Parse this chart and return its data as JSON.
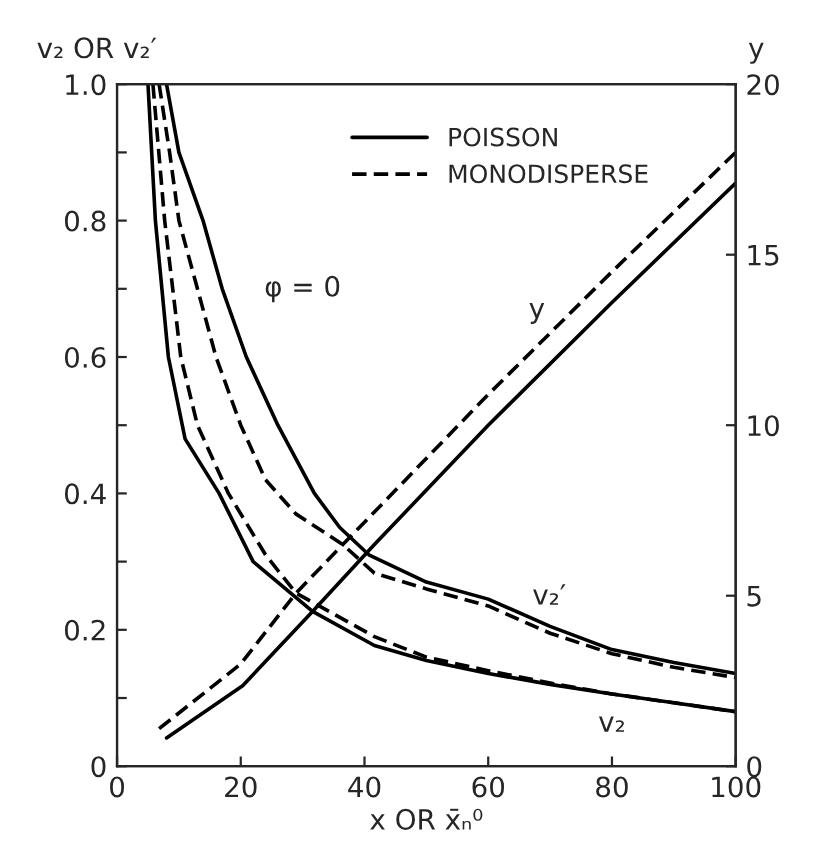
{
  "chart_data": {
    "type": "line",
    "xlabel": "x OR x̄ₙ⁰",
    "ylabel": "v₂ OR v₂′",
    "y2label": "y",
    "xlim": [
      0,
      100
    ],
    "xticks": [
      0,
      20,
      40,
      60,
      80,
      100
    ],
    "ylim": [
      0,
      1.0
    ],
    "yticks": [
      0,
      {
        "value": 0.1,
        "label": null
      },
      0.2,
      {
        "value": 0.3,
        "label": null
      },
      0.4,
      {
        "value": 0.5,
        "label": null
      },
      0.6,
      {
        "value": 0.7,
        "label": null
      },
      0.8,
      {
        "value": 0.9,
        "label": null
      },
      {
        "value": 1.0,
        "label": "1.0"
      }
    ],
    "y2lim": [
      0,
      20
    ],
    "y2ticks": [
      0,
      5,
      10,
      15,
      20
    ],
    "grid": false,
    "legend": "top",
    "marker": "none",
    "series": [
      {
        "name": "POISSON",
        "color": "#000000",
        "line_style": "solid",
        "x": [
          5,
          6.2,
          8.3,
          11,
          16.5,
          22,
          31.6,
          41.6,
          50,
          60,
          70,
          80,
          90,
          100
        ],
        "values": [
          1.0,
          0.8,
          0.6,
          0.48,
          0.4,
          0.3,
          0.227,
          0.177,
          0.155,
          0.136,
          0.12,
          0.106,
          0.093,
          0.08
        ]
      },
      {
        "name": "MONODISPERSE",
        "color": "#000000",
        "line_style": "dashed",
        "x": [
          5.8,
          7.7,
          10.3,
          13,
          18,
          24,
          28.9,
          41.6,
          50,
          60,
          70,
          80,
          90,
          100
        ],
        "values": [
          1.0,
          0.8,
          0.6,
          0.5,
          0.4,
          0.31,
          0.254,
          0.19,
          0.16,
          0.14,
          0.122,
          0.106,
          0.093,
          0.08
        ]
      },
      {
        "color": "#000000",
        "line_style": "solid",
        "x": [
          8,
          10,
          13.9,
          17,
          20.9,
          26,
          31.9,
          36,
          40.7,
          50,
          60,
          70,
          80,
          90,
          100
        ],
        "values": [
          1.0,
          0.9,
          0.8,
          0.7,
          0.6,
          0.5,
          0.4,
          0.35,
          0.31,
          0.27,
          0.245,
          0.205,
          0.171,
          0.152,
          0.136
        ]
      },
      {
        "color": "#000000",
        "line_style": "dashed",
        "x": [
          6.8,
          8.5,
          10,
          13,
          16,
          20,
          24,
          28.9,
          36.5,
          41.6,
          50,
          60,
          70,
          80,
          90,
          100
        ],
        "values": [
          1.0,
          0.9,
          0.8,
          0.7,
          0.6,
          0.5,
          0.42,
          0.37,
          0.325,
          0.283,
          0.26,
          0.235,
          0.195,
          0.165,
          0.145,
          0.13
        ]
      },
      {
        "color": "#000000",
        "line_style": "solid",
        "axis": "y2",
        "x": [
          8,
          20.3,
          31.6,
          41.6,
          60,
          80,
          100
        ],
        "values": [
          0.83,
          2.36,
          4.54,
          6.5,
          10.0,
          13.6,
          17.1
        ]
      },
      {
        "color": "#000000",
        "line_style": "dashed",
        "axis": "y2",
        "x": [
          6.8,
          20,
          28.9,
          36.5,
          60,
          80,
          100
        ],
        "values": [
          1.1,
          3.0,
          5.07,
          6.5,
          10.9,
          14.5,
          18.0
        ]
      }
    ],
    "annotations": [
      "φ = 0",
      {
        "text": "y",
        "x": 71,
        "y": 0.62
      },
      {
        "text": "v₂′",
        "x": 73,
        "y": 0.2
      },
      {
        "text": "v₂",
        "x": 80,
        "y": 0.106
      }
    ]
  }
}
